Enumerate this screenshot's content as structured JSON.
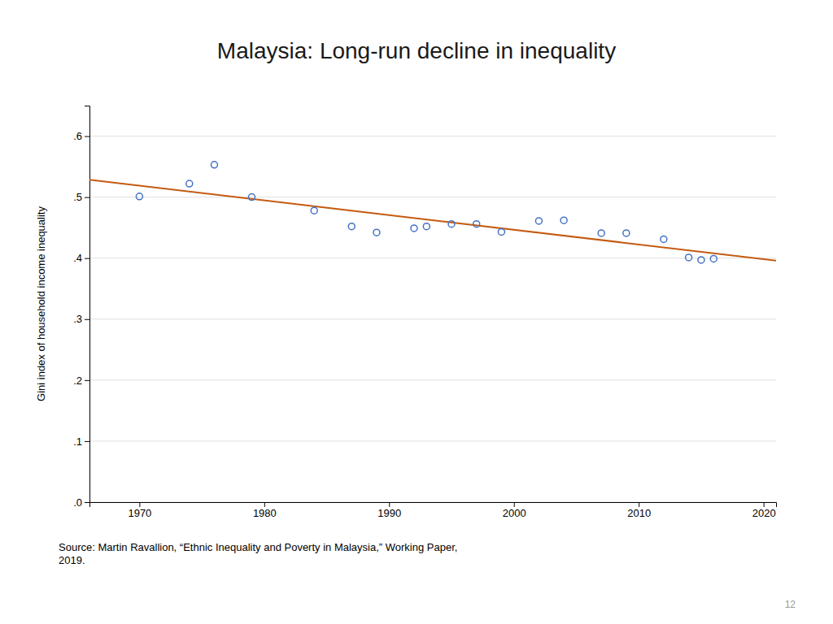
{
  "chart_data": {
    "type": "scatter",
    "title": "Malaysia: Long-run decline in inequality",
    "y_label": "Gini index of household income inequality",
    "annotations": [
      "Source: Martin Ravallion, “Ethnic Inequality and Poverty in Malaysia,” Working Paper,\n2019.",
      "12"
    ],
    "series": [
      {
        "type": "scatter",
        "color": "#4472C4",
        "marker": "circle",
        "x": [
          1970,
          1974,
          1976,
          1979,
          1984,
          1987,
          1989,
          1992,
          1993,
          1995,
          1997,
          1999,
          2002,
          2004,
          2007,
          2009,
          2012,
          2014,
          2015,
          2016
        ],
        "values": [
          0.501,
          0.522,
          0.553,
          0.5,
          0.478,
          0.452,
          0.442,
          0.449,
          0.452,
          0.456,
          0.456,
          0.443,
          0.461,
          0.462,
          0.441,
          0.441,
          0.431,
          0.401,
          0.397,
          0.399
        ]
      },
      {
        "type": "line",
        "color": "#C55A11",
        "line_style": "solid",
        "x": [
          1966,
          2021
        ],
        "values": [
          0.528399,
          0.395901
        ]
      }
    ],
    "xlim": [
      1966,
      2021
    ],
    "ylim": [
      0.0,
      0.65
    ],
    "xticks": [
      1970,
      1980,
      1990,
      2000,
      2010,
      2020
    ],
    "yticks": [
      {
        "value": 0.0,
        "label": ".0"
      },
      {
        "value": 0.1,
        "label": ".1"
      },
      {
        "value": 0.2,
        "label": ".2"
      },
      {
        "value": 0.3,
        "label": ".3"
      },
      {
        "value": 0.4,
        "label": ".4"
      },
      {
        "value": 0.5,
        "label": ".5"
      },
      {
        "value": 0.6,
        "label": ".6"
      }
    ],
    "grid": "y"
  }
}
